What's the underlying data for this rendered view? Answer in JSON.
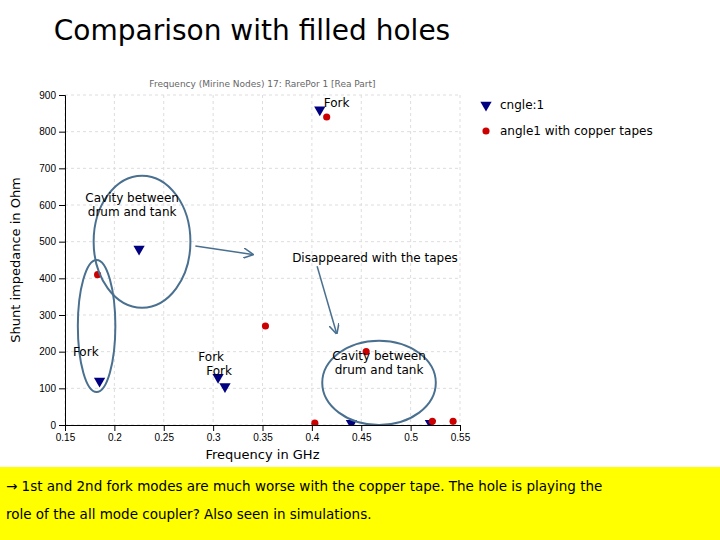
{
  "chart_data": {
    "type": "scatter",
    "title": "Comparison with filled holes",
    "subtitle": "Frequency (Mirine Nodes) 17: RarePor 1 [Rea Part]",
    "x_label": "Frequency in GHz",
    "y_label": "Shunt impedance in Ohm",
    "xlim": [
      0.15,
      0.55
    ],
    "ylim": [
      0,
      900
    ],
    "xticks": [
      0.15,
      0.2,
      0.25,
      0.3,
      0.35,
      0.4,
      0.45,
      0.5,
      0.55
    ],
    "yticks": [
      0,
      100,
      200,
      300,
      400,
      500,
      600,
      700,
      800,
      900
    ],
    "grid": true,
    "legend": "right",
    "series": [
      {
        "name": "cngle:1",
        "color": "navy",
        "marker": "triangle-down",
        "x": [
          0.185,
          0.225,
          0.305,
          0.312,
          0.44,
          0.408,
          0.52
        ],
        "values": [
          120,
          480,
          130,
          105,
          5,
          860,
          5
        ]
      },
      {
        "name": "angle1 with copper tapes",
        "color": "#cc0000",
        "marker": "circle",
        "x": [
          0.183,
          0.353,
          0.403,
          0.415,
          0.455,
          0.522,
          0.543
        ],
        "values": [
          410,
          270,
          5,
          840,
          200,
          10,
          10
        ]
      }
    ],
    "ellipses": [
      {
        "cx": 0.182,
        "cy": 270,
        "w": 0.038,
        "h": 360,
        "color": "#4a7090"
      },
      {
        "cx": 0.228,
        "cy": 500,
        "w": 0.098,
        "h": 360,
        "color": "#4a7090"
      },
      {
        "cx": 0.468,
        "cy": 115,
        "w": 0.115,
        "h": 230,
        "color": "#4a7090"
      }
    ],
    "arrows": [
      {
        "from": [
          0.282,
          488
        ],
        "to": [
          0.34,
          465
        ],
        "color": "#4a7090"
      }
    ],
    "annotations": [
      {
        "text": "Cavity between\ndrum and tank",
        "x": 0.218,
        "y": 600
      },
      {
        "text": "Cavity between\ndrum and tank",
        "x": 0.468,
        "y": 170
      },
      {
        "text": "Disappeared with the tapes",
        "x": 0.38,
        "y": 455,
        "arrow_x": 0.425,
        "arrow_y": 250,
        "color": "#4a7090"
      },
      {
        "text": "Fork",
        "x": 0.158,
        "y": 200
      },
      {
        "text": "Fork",
        "x": 0.285,
        "y": 185
      },
      {
        "text": "Fork",
        "x": 0.293,
        "y": 148
      },
      {
        "text": "Fork",
        "x": 0.412,
        "y": 880
      }
    ],
    "footnote": {
      "lines": [
        "→ 1st and 2nd fork modes are much worse with the copper tape. The hole is playing the",
        "role of the all mode coupler? Also seen in simulations."
      ],
      "color": "#ffff00"
    }
  }
}
